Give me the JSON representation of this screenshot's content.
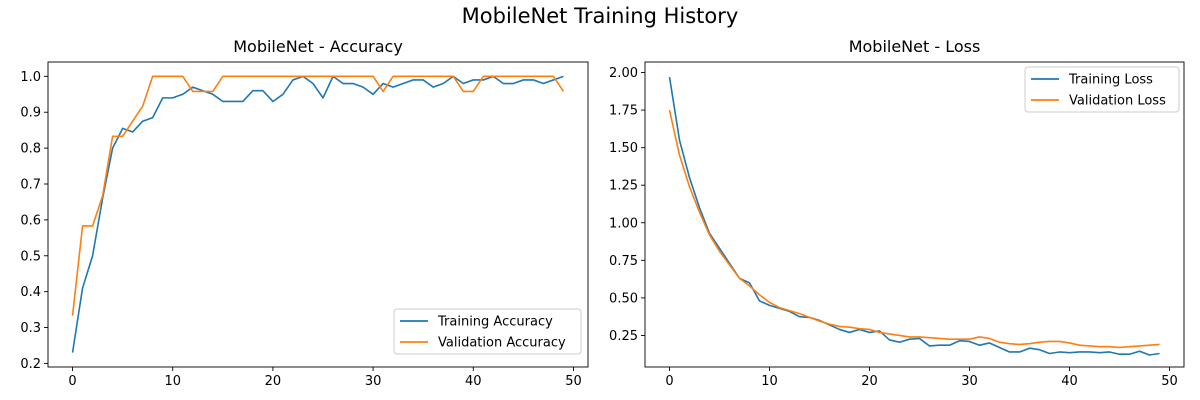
{
  "figure": {
    "title": "MobileNet Training History"
  },
  "colors": {
    "training": "#1f77b4",
    "validation": "#ff7f0e"
  },
  "chart_data": [
    {
      "type": "line",
      "title": "MobileNet - Accuracy",
      "xlabel": "",
      "ylabel": "",
      "xlim": [
        -2.45,
        51.45
      ],
      "ylim": [
        0.19,
        1.04
      ],
      "xticks": [
        0,
        10,
        20,
        30,
        40,
        50
      ],
      "xtick_labels": [
        "0",
        "10",
        "20",
        "30",
        "40",
        "50"
      ],
      "yticks": [
        0.2,
        0.3,
        0.4,
        0.5,
        0.6,
        0.7,
        0.8,
        0.9,
        1.0
      ],
      "ytick_labels": [
        "0.2",
        "0.3",
        "0.4",
        "0.5",
        "0.6",
        "0.7",
        "0.8",
        "0.9",
        "1.0"
      ],
      "legend_loc": "lower-right",
      "grid": false,
      "x": [
        0,
        1,
        2,
        3,
        4,
        5,
        6,
        7,
        8,
        9,
        10,
        11,
        12,
        13,
        14,
        15,
        16,
        17,
        18,
        19,
        20,
        21,
        22,
        23,
        24,
        25,
        26,
        27,
        28,
        29,
        30,
        31,
        32,
        33,
        34,
        35,
        36,
        37,
        38,
        39,
        40,
        41,
        42,
        43,
        44,
        45,
        46,
        47,
        48,
        49
      ],
      "series": [
        {
          "name": "Training Accuracy",
          "color_key": "training",
          "values": [
            0.23,
            0.41,
            0.5,
            0.66,
            0.8,
            0.855,
            0.845,
            0.875,
            0.885,
            0.94,
            0.94,
            0.95,
            0.97,
            0.96,
            0.95,
            0.93,
            0.93,
            0.93,
            0.96,
            0.96,
            0.93,
            0.95,
            0.99,
            1.0,
            0.98,
            0.94,
            1.0,
            0.98,
            0.98,
            0.97,
            0.95,
            0.98,
            0.97,
            0.98,
            0.99,
            0.99,
            0.97,
            0.98,
            1.0,
            0.98,
            0.99,
            0.99,
            1.0,
            0.98,
            0.98,
            0.99,
            0.99,
            0.98,
            0.99,
            1.0
          ]
        },
        {
          "name": "Validation Accuracy",
          "color_key": "validation",
          "values": [
            0.333,
            0.583,
            0.583,
            0.667,
            0.833,
            0.833,
            0.875,
            0.917,
            1.0,
            1.0,
            1.0,
            1.0,
            0.958,
            0.958,
            0.958,
            1.0,
            1.0,
            1.0,
            1.0,
            1.0,
            1.0,
            1.0,
            1.0,
            1.0,
            1.0,
            1.0,
            1.0,
            1.0,
            1.0,
            1.0,
            1.0,
            0.958,
            1.0,
            1.0,
            1.0,
            1.0,
            1.0,
            1.0,
            1.0,
            0.958,
            0.958,
            1.0,
            1.0,
            1.0,
            1.0,
            1.0,
            1.0,
            1.0,
            1.0,
            0.958
          ]
        }
      ]
    },
    {
      "type": "line",
      "title": "MobileNet - Loss",
      "xlabel": "",
      "ylabel": "",
      "xlim": [
        -2.45,
        51.45
      ],
      "ylim": [
        0.04,
        2.07
      ],
      "xticks": [
        0,
        10,
        20,
        30,
        40,
        50
      ],
      "xtick_labels": [
        "0",
        "10",
        "20",
        "30",
        "40",
        "50"
      ],
      "yticks": [
        0.25,
        0.5,
        0.75,
        1.0,
        1.25,
        1.5,
        1.75,
        2.0
      ],
      "ytick_labels": [
        "0.25",
        "0.50",
        "0.75",
        "1.00",
        "1.25",
        "1.50",
        "1.75",
        "2.00"
      ],
      "legend_loc": "upper-right",
      "grid": false,
      "x": [
        0,
        1,
        2,
        3,
        4,
        5,
        6,
        7,
        8,
        9,
        10,
        11,
        12,
        13,
        14,
        15,
        16,
        17,
        18,
        19,
        20,
        21,
        22,
        23,
        24,
        25,
        26,
        27,
        28,
        29,
        30,
        31,
        32,
        33,
        34,
        35,
        36,
        37,
        38,
        39,
        40,
        41,
        42,
        43,
        44,
        45,
        46,
        47,
        48,
        49
      ],
      "series": [
        {
          "name": "Training Loss",
          "color_key": "training",
          "values": [
            1.97,
            1.55,
            1.3,
            1.1,
            0.93,
            0.83,
            0.73,
            0.63,
            0.6,
            0.48,
            0.45,
            0.43,
            0.41,
            0.375,
            0.37,
            0.35,
            0.32,
            0.29,
            0.27,
            0.29,
            0.27,
            0.28,
            0.22,
            0.205,
            0.225,
            0.23,
            0.18,
            0.185,
            0.185,
            0.215,
            0.21,
            0.185,
            0.2,
            0.17,
            0.14,
            0.14,
            0.165,
            0.155,
            0.13,
            0.14,
            0.135,
            0.14,
            0.14,
            0.135,
            0.14,
            0.125,
            0.125,
            0.145,
            0.12,
            0.13
          ]
        },
        {
          "name": "Validation Loss",
          "color_key": "validation",
          "values": [
            1.75,
            1.45,
            1.24,
            1.07,
            0.92,
            0.81,
            0.72,
            0.63,
            0.58,
            0.52,
            0.47,
            0.435,
            0.415,
            0.395,
            0.37,
            0.345,
            0.325,
            0.31,
            0.305,
            0.295,
            0.29,
            0.27,
            0.26,
            0.25,
            0.24,
            0.24,
            0.235,
            0.23,
            0.225,
            0.225,
            0.225,
            0.24,
            0.23,
            0.205,
            0.195,
            0.19,
            0.195,
            0.205,
            0.21,
            0.21,
            0.2,
            0.185,
            0.18,
            0.175,
            0.175,
            0.17,
            0.175,
            0.18,
            0.185,
            0.19
          ]
        }
      ]
    }
  ]
}
